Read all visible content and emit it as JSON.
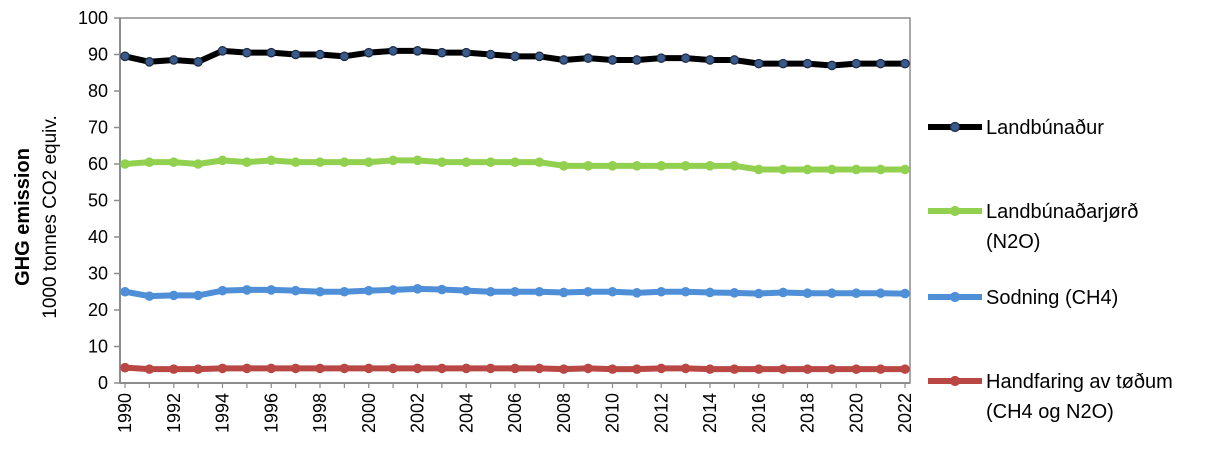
{
  "chart_data": {
    "type": "line",
    "title": "",
    "ylabel_line1": "GHG emission",
    "ylabel_line2": "1000 tonnes CO2  equiv.",
    "xlabel": "",
    "ylim": [
      0,
      100
    ],
    "yticks": [
      "0",
      "10",
      "20",
      "30",
      "40",
      "50",
      "60",
      "70",
      "80",
      "90",
      "100"
    ],
    "grid": false,
    "legend_position": "right",
    "x": [
      1990,
      1991,
      1992,
      1993,
      1994,
      1995,
      1996,
      1997,
      1998,
      1999,
      2000,
      2001,
      2002,
      2003,
      2004,
      2005,
      2006,
      2007,
      2008,
      2009,
      2010,
      2011,
      2012,
      2013,
      2014,
      2015,
      2016,
      2017,
      2018,
      2019,
      2020,
      2021,
      2022
    ],
    "xticks": [
      "1990",
      "1992",
      "1994",
      "1996",
      "1998",
      "2000",
      "2002",
      "2004",
      "2006",
      "2008",
      "2010",
      "2012",
      "2014",
      "2016",
      "2018",
      "2020",
      "2022"
    ],
    "series": [
      {
        "name": "Landbúnaður",
        "color": "#000000",
        "marker_color": "#3a5a8c",
        "values": [
          89.5,
          88,
          88.5,
          88,
          91,
          90.5,
          90.5,
          90,
          90,
          89.5,
          90.5,
          91,
          91,
          90.5,
          90.5,
          90,
          89.5,
          89.5,
          88.5,
          89,
          88.5,
          88.5,
          89,
          89,
          88.5,
          88.5,
          87.5,
          87.5,
          87.5,
          87,
          87.5,
          87.5,
          87.5
        ]
      },
      {
        "name": "Landbúnaðarjørð",
        "name_line2": "(N2O)",
        "color": "#92d050",
        "marker_color": "#92d050",
        "values": [
          60,
          60.5,
          60.5,
          60,
          61,
          60.5,
          61,
          60.5,
          60.5,
          60.5,
          60.5,
          61,
          61,
          60.5,
          60.5,
          60.5,
          60.5,
          60.5,
          59.5,
          59.5,
          59.5,
          59.5,
          59.5,
          59.5,
          59.5,
          59.5,
          58.5,
          58.5,
          58.5,
          58.5,
          58.5,
          58.5,
          58.5
        ]
      },
      {
        "name": "Sodning (CH4)",
        "color": "#4f8fd8",
        "marker_color": "#4f8fd8",
        "values": [
          25,
          23.8,
          24,
          24,
          25.3,
          25.5,
          25.5,
          25.3,
          25,
          25,
          25.3,
          25.5,
          25.8,
          25.6,
          25.3,
          25,
          25,
          25,
          24.8,
          25,
          25,
          24.7,
          25,
          25,
          24.8,
          24.7,
          24.5,
          24.8,
          24.6,
          24.6,
          24.6,
          24.6,
          24.5
        ]
      },
      {
        "name": "Handfaring av tøðum",
        "name_line2": "(CH4 og N2O)",
        "color": "#b94743",
        "marker_color": "#b94743",
        "values": [
          4.2,
          3.8,
          3.8,
          3.8,
          4,
          4,
          4,
          4,
          4,
          4,
          4,
          4,
          4,
          4,
          4,
          4,
          4,
          4,
          3.8,
          4,
          3.8,
          3.8,
          4,
          4,
          3.8,
          3.8,
          3.8,
          3.8,
          3.8,
          3.8,
          3.8,
          3.8,
          3.8
        ]
      }
    ]
  }
}
